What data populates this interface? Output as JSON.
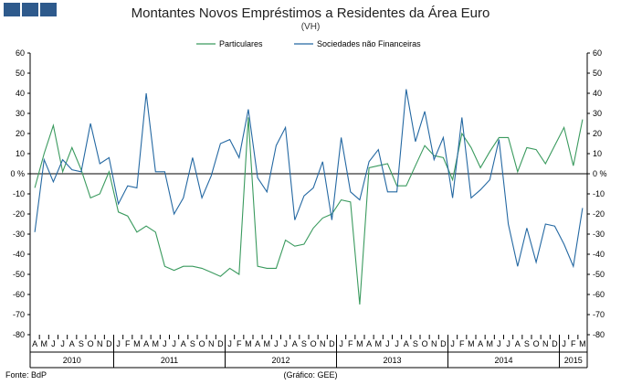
{
  "header": {
    "title": "Montantes Novos Empréstimos a Residentes da Área Euro",
    "subtitle": "(VH)"
  },
  "footer": {
    "source": "Fonte: BdP",
    "graph_credit": "(Gráfico: GEE)"
  },
  "colors": {
    "particulares": "#3a9a5e",
    "sociedades": "#2468a2",
    "logo": "#2e5a8c"
  },
  "chart_data": {
    "type": "line",
    "title": "Montantes Novos Empréstimos a Residentes da Área Euro",
    "subtitle": "(VH)",
    "ylim": [
      -80,
      60
    ],
    "yticks": [
      60,
      50,
      40,
      30,
      20,
      10,
      0,
      -10,
      -20,
      -30,
      -40,
      -50,
      -60,
      -70,
      -80
    ],
    "ytick_labels": [
      "60",
      "50",
      "40",
      "30",
      "20",
      "10",
      "0 %",
      "-10",
      "-20",
      "-30",
      "-40",
      "-50",
      "-60",
      "-70",
      "-80"
    ],
    "grid": false,
    "legend_position": "top-center",
    "month_labels": [
      "A",
      "M",
      "J",
      "J",
      "A",
      "S",
      "O",
      "N",
      "D",
      "J",
      "F",
      "M",
      "A",
      "M",
      "J",
      "J",
      "A",
      "S",
      "O",
      "N",
      "D",
      "J",
      "F",
      "M",
      "A",
      "M",
      "J",
      "J",
      "A",
      "S",
      "O",
      "N",
      "D",
      "J",
      "F",
      "M",
      "A",
      "M",
      "J",
      "J",
      "A",
      "S",
      "O",
      "N",
      "D",
      "J",
      "F",
      "M",
      "A",
      "M",
      "J",
      "J",
      "A",
      "S",
      "O",
      "N",
      "D",
      "J",
      "F",
      "M"
    ],
    "years": [
      {
        "label": "2010",
        "months": 9
      },
      {
        "label": "2011",
        "months": 12
      },
      {
        "label": "2012",
        "months": 12
      },
      {
        "label": "2013",
        "months": 12
      },
      {
        "label": "2014",
        "months": 12
      },
      {
        "label": "2015",
        "months": 3
      }
    ],
    "series": [
      {
        "name": "Particulares",
        "color": "#3a9a5e",
        "values": [
          -7,
          10,
          24,
          1,
          13,
          2,
          -12,
          -10,
          1,
          -19,
          -21,
          -29,
          -26,
          -29,
          -46,
          -48,
          -46,
          -46,
          -47,
          -49,
          -51,
          -47,
          -50,
          28,
          -46,
          -47,
          -47,
          -33,
          -36,
          -35,
          -27,
          -22,
          -20,
          -13,
          -14,
          -65,
          3,
          4,
          5,
          -6,
          -6,
          4,
          14,
          9,
          8,
          -3,
          20,
          13,
          3,
          11,
          18,
          18,
          1,
          13,
          12,
          5,
          14,
          23,
          4,
          27
        ]
      },
      {
        "name": "Sociedades não Financeiras",
        "color": "#2468a2",
        "values": [
          -29,
          7,
          -4,
          7,
          2,
          1,
          25,
          5,
          8,
          -15,
          -6,
          -7,
          40,
          1,
          1,
          -20,
          -12,
          8,
          -12,
          -1,
          15,
          17,
          8,
          32,
          -2,
          -9,
          14,
          23,
          -23,
          -11,
          -7,
          6,
          -23,
          18,
          -9,
          -13,
          6,
          12,
          -9,
          -9,
          42,
          16,
          31,
          7,
          18,
          -12,
          28,
          -12,
          -8,
          -3,
          17,
          -25,
          -46,
          -27,
          -44,
          -25,
          -26,
          -35,
          -46,
          -17
        ]
      }
    ]
  }
}
